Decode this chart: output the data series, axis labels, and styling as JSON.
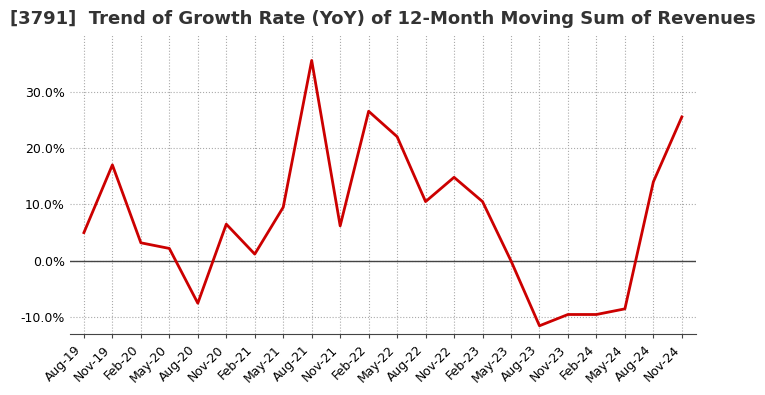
{
  "title": "[3791]  Trend of Growth Rate (YoY) of 12-Month Moving Sum of Revenues",
  "line_color": "#CC0000",
  "background_color": "#FFFFFF",
  "grid_color": "#AAAAAA",
  "ylim": [
    -0.13,
    0.4
  ],
  "yticks": [
    -0.1,
    0.0,
    0.1,
    0.2,
    0.3
  ],
  "xlabels": [
    "Aug-19",
    "Nov-19",
    "Feb-20",
    "May-20",
    "Aug-20",
    "Nov-20",
    "Feb-21",
    "May-21",
    "Aug-21",
    "Nov-21",
    "Feb-22",
    "May-22",
    "Aug-22",
    "Nov-22",
    "Feb-23",
    "May-23",
    "Aug-23",
    "Nov-23",
    "Feb-24",
    "May-24",
    "Aug-24",
    "Nov-24"
  ],
  "x_values": [
    0,
    1,
    2,
    3,
    4,
    5,
    6,
    7,
    8,
    9,
    10,
    11,
    12,
    13,
    14,
    15,
    16,
    17,
    18,
    19,
    20,
    21
  ],
  "y_values": [
    0.05,
    0.17,
    0.032,
    0.022,
    -0.075,
    0.065,
    0.012,
    0.095,
    0.355,
    0.062,
    0.265,
    0.22,
    0.105,
    0.148,
    0.105,
    0.0,
    -0.115,
    -0.095,
    -0.095,
    -0.085,
    0.14,
    0.255
  ],
  "title_fontsize": 13,
  "tick_fontsize": 9,
  "line_width": 2.0
}
